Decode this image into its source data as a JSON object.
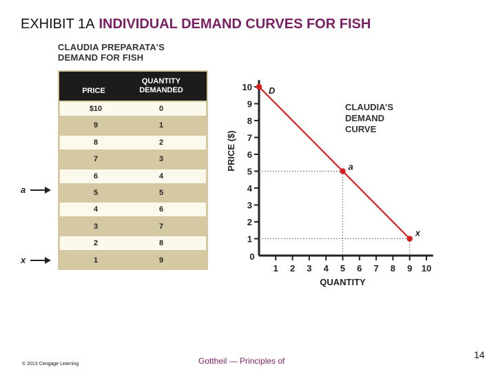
{
  "slide": {
    "exhibit_label": "EXHIBIT 1A",
    "title": "INDIVIDUAL DEMAND CURVES FOR FISH",
    "copyright": "© 2013 Cengage Learning",
    "footer": "Gottheil — Principles of",
    "page_number": "14"
  },
  "table": {
    "title_line1": "CLAUDIA PREPARATA’S",
    "title_line2": "DEMAND FOR FISH",
    "header_price": "PRICE",
    "header_qty_line1": "QUANTITY",
    "header_qty_line2": "DEMANDED",
    "rows": [
      {
        "price": "$10",
        "qty": "0"
      },
      {
        "price": "9",
        "qty": "1"
      },
      {
        "price": "8",
        "qty": "2"
      },
      {
        "price": "7",
        "qty": "3"
      },
      {
        "price": "6",
        "qty": "4"
      },
      {
        "price": "5",
        "qty": "5"
      },
      {
        "price": "4",
        "qty": "6"
      },
      {
        "price": "3",
        "qty": "7"
      },
      {
        "price": "2",
        "qty": "8"
      },
      {
        "price": "1",
        "qty": "9"
      }
    ],
    "marker_a": "a",
    "marker_x": "x"
  },
  "chart_data": {
    "type": "line",
    "xlabel": "QUANTITY",
    "ylabel": "PRICE ($)",
    "xlim": [
      0,
      10
    ],
    "ylim": [
      0,
      10
    ],
    "x_ticks": [
      "0",
      "1",
      "2",
      "3",
      "4",
      "5",
      "6",
      "7",
      "8",
      "9",
      "10"
    ],
    "y_ticks": [
      "1",
      "2",
      "3",
      "4",
      "5",
      "6",
      "7",
      "8",
      "9",
      "10"
    ],
    "series": [
      {
        "color": "#d62020",
        "points": [
          [
            0,
            10
          ],
          [
            9,
            1
          ]
        ]
      }
    ],
    "highlight_points": [
      {
        "label": "D",
        "x": 0,
        "y": 10
      },
      {
        "label": "a",
        "x": 5,
        "y": 5
      },
      {
        "label": "x",
        "x": 9,
        "y": 1
      }
    ],
    "curve_label": [
      "CLAUDIA’S",
      "DEMAND",
      "CURVE"
    ],
    "guide_lines": "dotted",
    "grid": false
  }
}
